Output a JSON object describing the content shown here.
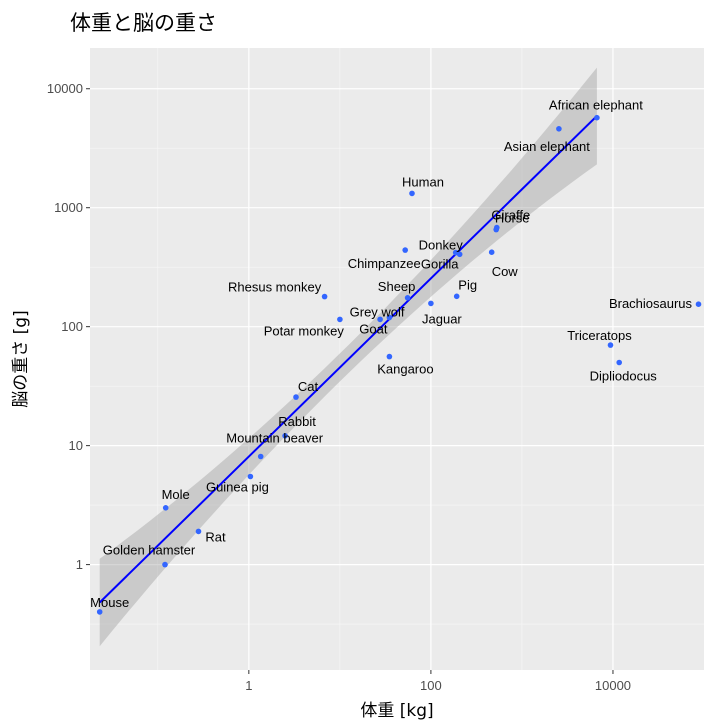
{
  "chart_data": {
    "type": "scatter",
    "title": "体重と脳の重さ",
    "xlabel": "体重 [kg]",
    "ylabel": "脳の重さ [g]",
    "x_scale": "log10",
    "y_scale": "log10",
    "xlim": [
      0.018,
      100000
    ],
    "ylim": [
      0.13,
      22000
    ],
    "x_ticks": [
      1,
      100,
      10000
    ],
    "x_tick_labels": [
      "1",
      "100",
      "10000"
    ],
    "y_ticks": [
      1,
      10,
      100,
      1000,
      10000
    ],
    "y_tick_labels": [
      "1",
      "10",
      "100",
      "1000",
      "10000"
    ],
    "grid": true,
    "point_color": "#3366ff",
    "fit_line_color": "#0000ff",
    "band_color": "#999999",
    "panel_background": "#ebebeb",
    "fit": {
      "x_from": 0.023,
      "x_to": 6654,
      "y_from": 0.48,
      "y_to": 5900
    },
    "points": [
      {
        "name": "Mouse",
        "x": 0.023,
        "y": 0.4
      },
      {
        "name": "Golden hamster",
        "x": 0.12,
        "y": 1.0
      },
      {
        "name": "Rat",
        "x": 0.28,
        "y": 1.9
      },
      {
        "name": "Mole",
        "x": 0.122,
        "y": 3.0
      },
      {
        "name": "Guinea pig",
        "x": 1.04,
        "y": 5.5
      },
      {
        "name": "Mountain beaver",
        "x": 1.35,
        "y": 8.1
      },
      {
        "name": "Rabbit",
        "x": 2.5,
        "y": 12.1
      },
      {
        "name": "Cat",
        "x": 3.3,
        "y": 25.6
      },
      {
        "name": "Potar monkey",
        "x": 10.0,
        "y": 115
      },
      {
        "name": "Rhesus monkey",
        "x": 6.8,
        "y": 179
      },
      {
        "name": "Grey wolf",
        "x": 27.66,
        "y": 115
      },
      {
        "name": "Goat",
        "x": 35,
        "y": 119.5
      },
      {
        "name": "Kangaroo",
        "x": 35,
        "y": 56
      },
      {
        "name": "Sheep",
        "x": 55.5,
        "y": 175
      },
      {
        "name": "Chimpanzee",
        "x": 52.16,
        "y": 440
      },
      {
        "name": "Human",
        "x": 62,
        "y": 1320
      },
      {
        "name": "Jaguar",
        "x": 100,
        "y": 157
      },
      {
        "name": "Pig",
        "x": 192,
        "y": 180
      },
      {
        "name": "Donkey",
        "x": 187.1,
        "y": 419
      },
      {
        "name": "Gorilla",
        "x": 207,
        "y": 406
      },
      {
        "name": "Cow",
        "x": 465,
        "y": 423
      },
      {
        "name": "Horse",
        "x": 521,
        "y": 655
      },
      {
        "name": "Giraffe",
        "x": 529,
        "y": 680
      },
      {
        "name": "Asian elephant",
        "x": 2547,
        "y": 4603
      },
      {
        "name": "African elephant",
        "x": 6654,
        "y": 5712
      },
      {
        "name": "Triceratops",
        "x": 9400,
        "y": 70
      },
      {
        "name": "Dipliodocus",
        "x": 11700,
        "y": 50
      },
      {
        "name": "Brachiosaurus",
        "x": 87000,
        "y": 154.5
      }
    ]
  }
}
